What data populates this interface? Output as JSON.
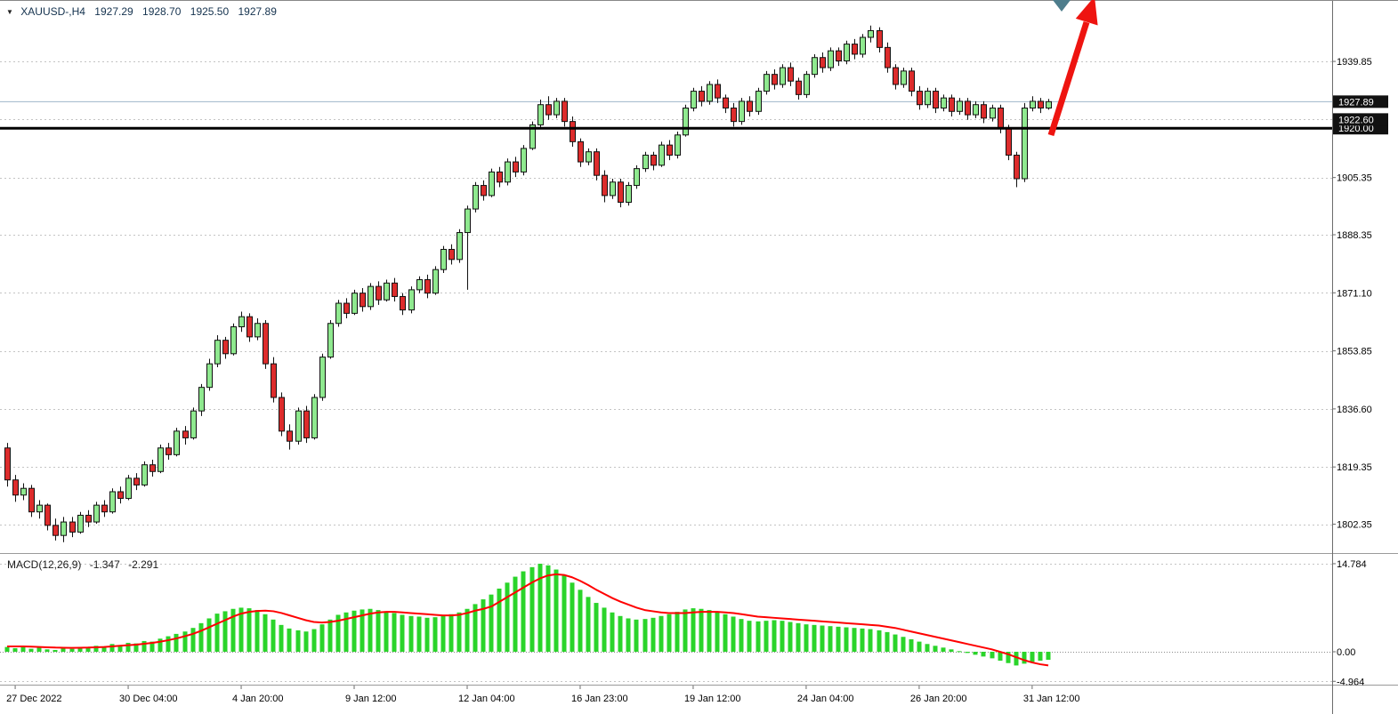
{
  "header": {
    "symbol_tf": "XAUUSD-,H4",
    "open": "1927.29",
    "high": "1928.70",
    "low": "1925.50",
    "close": "1927.89"
  },
  "colors": {
    "bull_candle": "#8fe98f",
    "bear_candle": "#dd2c2c",
    "candle_border": "#111111",
    "grid": "#c4c4c4",
    "axis_line": "#6b6b6b",
    "separator": "#9a9a9a",
    "bid_line": "#9fb6ca",
    "level_line": "#000000",
    "label_box": "#111111",
    "label_box_text": "#ffffff",
    "macd_bar": "#2ad42a",
    "macd_signal": "#ff0000",
    "arrow": "#ee1410",
    "anchor_marker": "#4e7d8c",
    "tick_text": "#000000"
  },
  "chart_data": [
    {
      "type": "candlestick",
      "title": "XAUUSD- H4",
      "price_axis_ticks": [
        {
          "label": "1939.85"
        },
        {
          "label": "1922.60",
          "boxed": true
        },
        {
          "label": "1905.35"
        },
        {
          "label": "1888.35"
        },
        {
          "label": "1871.10"
        },
        {
          "label": "1853.85"
        },
        {
          "label": "1836.60"
        },
        {
          "label": "1819.35"
        },
        {
          "label": "1802.35"
        }
      ],
      "levels": [
        {
          "price": 1927.89,
          "label": "1927.89",
          "kind": "bid-price-line",
          "width": 1
        },
        {
          "price": 1920.0,
          "label": "1920.00",
          "kind": "support-line",
          "width": 3
        }
      ],
      "price_range_hint": [
        1794.4,
        1958.1
      ],
      "time_labels": [
        {
          "text": "27 Dec 2022",
          "index": 1
        },
        {
          "text": "30 Dec 04:00",
          "index": 15
        },
        {
          "text": "4 Jan 20:00",
          "index": 29
        },
        {
          "text": "9 Jan 12:00",
          "index": 43
        },
        {
          "text": "12 Jan 04:00",
          "index": 57
        },
        {
          "text": "16 Jan 23:00",
          "index": 71
        },
        {
          "text": "19 Jan 12:00",
          "index": 85
        },
        {
          "text": "24 Jan 04:00",
          "index": 99
        },
        {
          "text": "26 Jan 20:00",
          "index": 113
        },
        {
          "text": "31 Jan 12:00",
          "index": 127
        }
      ],
      "candles_ohlc": [
        [
          1825.0,
          1826.5,
          1813.5,
          1815.5
        ],
        [
          1815.5,
          1817.0,
          1809.0,
          1811.0
        ],
        [
          1811.0,
          1814.5,
          1809.5,
          1813.0
        ],
        [
          1813.0,
          1814.0,
          1804.5,
          1806.0
        ],
        [
          1806.0,
          1809.5,
          1804.0,
          1808.0
        ],
        [
          1808.0,
          1808.5,
          1800.5,
          1802.0
        ],
        [
          1802.0,
          1804.0,
          1797.5,
          1799.0
        ],
        [
          1799.0,
          1804.5,
          1797.0,
          1803.0
        ],
        [
          1803.0,
          1804.5,
          1798.5,
          1800.0
        ],
        [
          1800.0,
          1806.0,
          1799.5,
          1805.0
        ],
        [
          1805.0,
          1806.5,
          1801.5,
          1803.0
        ],
        [
          1803.0,
          1809.0,
          1802.5,
          1808.0
        ],
        [
          1808.0,
          1809.5,
          1804.5,
          1806.0
        ],
        [
          1806.0,
          1813.0,
          1805.5,
          1812.0
        ],
        [
          1812.0,
          1813.5,
          1808.5,
          1810.0
        ],
        [
          1810.0,
          1817.0,
          1809.5,
          1816.0
        ],
        [
          1816.0,
          1817.5,
          1812.5,
          1814.0
        ],
        [
          1814.0,
          1821.0,
          1813.5,
          1820.0
        ],
        [
          1820.0,
          1821.5,
          1816.5,
          1818.0
        ],
        [
          1818.0,
          1826.0,
          1817.5,
          1825.0
        ],
        [
          1825.0,
          1826.5,
          1821.5,
          1823.0
        ],
        [
          1823.0,
          1831.0,
          1822.5,
          1830.0
        ],
        [
          1830.0,
          1831.5,
          1826.0,
          1828.0
        ],
        [
          1828.0,
          1837.0,
          1827.5,
          1836.0
        ],
        [
          1836.0,
          1844.0,
          1834.5,
          1843.0
        ],
        [
          1843.0,
          1851.5,
          1842.0,
          1850.0
        ],
        [
          1850.0,
          1858.5,
          1849.0,
          1857.0
        ],
        [
          1857.0,
          1858.0,
          1851.5,
          1853.0
        ],
        [
          1853.0,
          1862.0,
          1852.5,
          1861.0
        ],
        [
          1861.0,
          1865.5,
          1859.5,
          1864.0
        ],
        [
          1864.0,
          1865.0,
          1856.5,
          1858.0
        ],
        [
          1858.0,
          1863.5,
          1857.0,
          1862.0
        ],
        [
          1862.0,
          1863.0,
          1848.5,
          1850.0
        ],
        [
          1850.0,
          1852.0,
          1838.5,
          1840.0
        ],
        [
          1840.0,
          1841.5,
          1828.5,
          1830.0
        ],
        [
          1830.0,
          1832.0,
          1824.5,
          1827.0
        ],
        [
          1827.0,
          1837.0,
          1826.0,
          1836.0
        ],
        [
          1836.0,
          1837.5,
          1826.5,
          1828.0
        ],
        [
          1828.0,
          1841.0,
          1827.5,
          1840.0
        ],
        [
          1840.0,
          1853.0,
          1839.0,
          1852.0
        ],
        [
          1852.0,
          1863.0,
          1851.5,
          1862.0
        ],
        [
          1862.0,
          1869.0,
          1861.0,
          1868.0
        ],
        [
          1868.0,
          1869.5,
          1863.5,
          1865.0
        ],
        [
          1865.0,
          1872.0,
          1864.5,
          1871.0
        ],
        [
          1871.0,
          1872.5,
          1865.5,
          1867.0
        ],
        [
          1867.0,
          1874.0,
          1866.0,
          1873.0
        ],
        [
          1873.0,
          1874.5,
          1867.5,
          1869.0
        ],
        [
          1869.0,
          1875.0,
          1868.5,
          1874.0
        ],
        [
          1874.0,
          1875.5,
          1868.5,
          1870.0
        ],
        [
          1870.0,
          1871.0,
          1864.5,
          1866.0
        ],
        [
          1866.0,
          1873.0,
          1865.0,
          1872.0
        ],
        [
          1872.0,
          1876.0,
          1871.0,
          1875.0
        ],
        [
          1875.0,
          1876.5,
          1869.5,
          1871.0
        ],
        [
          1871.0,
          1879.0,
          1870.5,
          1878.0
        ],
        [
          1878.0,
          1885.0,
          1877.0,
          1884.0
        ],
        [
          1884.0,
          1885.5,
          1879.5,
          1881.0
        ],
        [
          1881.0,
          1890.0,
          1880.0,
          1889.0
        ],
        [
          1889.0,
          1897.0,
          1872.0,
          1896.0
        ],
        [
          1896.0,
          1904.0,
          1895.0,
          1903.0
        ],
        [
          1903.0,
          1904.5,
          1898.5,
          1900.0
        ],
        [
          1900.0,
          1908.0,
          1899.5,
          1907.0
        ],
        [
          1907.0,
          1908.5,
          1902.5,
          1904.0
        ],
        [
          1904.0,
          1911.0,
          1903.0,
          1910.0
        ],
        [
          1910.0,
          1911.5,
          1905.5,
          1907.0
        ],
        [
          1907.0,
          1915.0,
          1906.0,
          1914.0
        ],
        [
          1914.0,
          1922.0,
          1913.5,
          1921.0
        ],
        [
          1921.0,
          1928.5,
          1920.0,
          1927.0
        ],
        [
          1927.0,
          1929.5,
          1922.5,
          1924.0
        ],
        [
          1924.0,
          1929.0,
          1923.0,
          1928.0
        ],
        [
          1928.0,
          1929.0,
          1920.5,
          1922.0
        ],
        [
          1922.0,
          1923.5,
          1914.5,
          1916.0
        ],
        [
          1916.0,
          1917.0,
          1908.5,
          1910.0
        ],
        [
          1910.0,
          1914.0,
          1909.0,
          1913.0
        ],
        [
          1913.0,
          1914.0,
          1904.5,
          1906.0
        ],
        [
          1906.0,
          1907.5,
          1898.0,
          1900.0
        ],
        [
          1900.0,
          1905.0,
          1899.0,
          1904.0
        ],
        [
          1904.0,
          1905.0,
          1896.5,
          1898.0
        ],
        [
          1898.0,
          1904.0,
          1897.0,
          1903.0
        ],
        [
          1903.0,
          1909.0,
          1902.0,
          1908.0
        ],
        [
          1908.0,
          1913.0,
          1907.0,
          1912.0
        ],
        [
          1912.0,
          1913.0,
          1907.5,
          1909.0
        ],
        [
          1909.0,
          1916.0,
          1908.5,
          1915.0
        ],
        [
          1915.0,
          1916.5,
          1910.5,
          1912.0
        ],
        [
          1912.0,
          1919.0,
          1911.0,
          1918.0
        ],
        [
          1918.0,
          1927.0,
          1917.5,
          1926.0
        ],
        [
          1926.0,
          1932.0,
          1925.0,
          1931.0
        ],
        [
          1931.0,
          1932.5,
          1926.5,
          1928.0
        ],
        [
          1928.0,
          1934.0,
          1927.0,
          1933.0
        ],
        [
          1933.0,
          1934.5,
          1927.5,
          1929.0
        ],
        [
          1929.0,
          1930.0,
          1924.5,
          1926.0
        ],
        [
          1926.0,
          1927.5,
          1920.5,
          1922.0
        ],
        [
          1922.0,
          1929.0,
          1921.0,
          1928.0
        ],
        [
          1928.0,
          1929.5,
          1923.5,
          1925.0
        ],
        [
          1925.0,
          1932.0,
          1924.0,
          1931.0
        ],
        [
          1931.0,
          1937.0,
          1930.0,
          1936.0
        ],
        [
          1936.0,
          1937.5,
          1931.5,
          1933.0
        ],
        [
          1933.0,
          1939.0,
          1932.0,
          1938.0
        ],
        [
          1938.0,
          1939.5,
          1932.5,
          1934.0
        ],
        [
          1934.0,
          1935.0,
          1928.5,
          1930.0
        ],
        [
          1930.0,
          1937.0,
          1929.0,
          1936.0
        ],
        [
          1936.0,
          1942.0,
          1935.0,
          1941.0
        ],
        [
          1941.0,
          1942.5,
          1936.5,
          1938.0
        ],
        [
          1938.0,
          1944.0,
          1937.0,
          1943.0
        ],
        [
          1943.0,
          1944.0,
          1938.5,
          1940.0
        ],
        [
          1940.0,
          1946.0,
          1939.0,
          1945.0
        ],
        [
          1945.0,
          1946.5,
          1940.5,
          1942.0
        ],
        [
          1942.0,
          1948.0,
          1941.0,
          1947.0
        ],
        [
          1947.0,
          1950.5,
          1945.5,
          1949.0
        ],
        [
          1949.0,
          1950.0,
          1942.5,
          1944.0
        ],
        [
          1944.0,
          1945.5,
          1936.5,
          1938.0
        ],
        [
          1938.0,
          1939.0,
          1931.5,
          1933.0
        ],
        [
          1933.0,
          1938.0,
          1932.0,
          1937.0
        ],
        [
          1937.0,
          1938.0,
          1929.5,
          1931.0
        ],
        [
          1931.0,
          1932.5,
          1925.5,
          1927.0
        ],
        [
          1927.0,
          1932.0,
          1926.0,
          1931.0
        ],
        [
          1931.0,
          1932.0,
          1924.5,
          1926.0
        ],
        [
          1926.0,
          1930.0,
          1925.0,
          1929.0
        ],
        [
          1929.0,
          1930.0,
          1923.5,
          1925.0
        ],
        [
          1925.0,
          1929.0,
          1924.0,
          1928.0
        ],
        [
          1928.0,
          1929.0,
          1922.5,
          1924.0
        ],
        [
          1924.0,
          1928.0,
          1923.0,
          1927.0
        ],
        [
          1927.0,
          1928.0,
          1921.5,
          1923.0
        ],
        [
          1923.0,
          1927.0,
          1922.0,
          1926.0
        ],
        [
          1926.0,
          1927.0,
          1918.5,
          1920.0
        ],
        [
          1920.0,
          1921.0,
          1910.5,
          1912.0
        ],
        [
          1912.0,
          1913.0,
          1902.5,
          1905.0
        ],
        [
          1905.0,
          1927.5,
          1904.0,
          1926.0
        ],
        [
          1926.0,
          1929.5,
          1925.0,
          1928.0
        ],
        [
          1928.0,
          1929.0,
          1924.5,
          1926.0
        ],
        [
          1926.0,
          1928.7,
          1925.5,
          1927.89
        ]
      ]
    },
    {
      "type": "bar+line",
      "name": "MACD",
      "label": "MACD(12,26,9)",
      "value_text": "-1.347",
      "signal_text": "-2.291",
      "ticks": [
        "14.784",
        "0.00",
        "-4.964"
      ],
      "range_hint": [
        -5.5,
        16.6
      ],
      "histogram": [
        0.8,
        0.6,
        0.9,
        0.5,
        0.7,
        0.4,
        0.3,
        0.6,
        0.5,
        0.8,
        0.7,
        1.0,
        0.9,
        1.3,
        1.1,
        1.5,
        1.4,
        1.8,
        1.7,
        2.2,
        2.6,
        3.0,
        3.4,
        4.0,
        4.8,
        5.6,
        6.4,
        6.8,
        7.2,
        7.4,
        7.3,
        7.0,
        6.3,
        5.4,
        4.5,
        3.9,
        3.6,
        3.4,
        3.8,
        4.6,
        5.4,
        6.2,
        6.6,
        6.9,
        7.1,
        7.2,
        7.0,
        6.8,
        6.5,
        6.2,
        6.0,
        5.9,
        5.7,
        5.8,
        6.1,
        6.3,
        6.6,
        7.2,
        8.0,
        8.8,
        9.6,
        10.6,
        11.6,
        12.6,
        13.5,
        14.2,
        14.78,
        14.5,
        13.8,
        12.8,
        11.6,
        10.4,
        9.2,
        8.2,
        7.4,
        6.6,
        6.0,
        5.6,
        5.4,
        5.5,
        5.7,
        6.0,
        6.3,
        6.7,
        7.1,
        7.3,
        7.2,
        7.0,
        6.7,
        6.3,
        5.9,
        5.5,
        5.2,
        5.1,
        5.2,
        5.3,
        5.2,
        5.0,
        4.8,
        4.6,
        4.5,
        4.4,
        4.3,
        4.2,
        4.1,
        4.0,
        3.9,
        3.8,
        3.6,
        3.3,
        2.9,
        2.5,
        2.1,
        1.7,
        1.3,
        1.0,
        0.7,
        0.4,
        0.1,
        -0.2,
        -0.5,
        -0.8,
        -1.1,
        -1.5,
        -1.9,
        -2.3,
        -2.0,
        -1.7,
        -1.5,
        -1.347
      ],
      "signal": [
        0.9,
        0.9,
        0.9,
        0.85,
        0.8,
        0.75,
        0.7,
        0.68,
        0.65,
        0.68,
        0.7,
        0.75,
        0.8,
        0.9,
        1.0,
        1.1,
        1.2,
        1.35,
        1.5,
        1.7,
        1.95,
        2.25,
        2.6,
        3.0,
        3.5,
        4.1,
        4.7,
        5.3,
        5.9,
        6.4,
        6.7,
        6.85,
        6.9,
        6.8,
        6.5,
        6.1,
        5.7,
        5.3,
        5.0,
        4.9,
        5.0,
        5.2,
        5.5,
        5.8,
        6.1,
        6.4,
        6.6,
        6.7,
        6.7,
        6.6,
        6.5,
        6.4,
        6.3,
        6.2,
        6.1,
        6.1,
        6.2,
        6.5,
        6.9,
        7.2,
        7.6,
        8.4,
        9.2,
        10.0,
        10.8,
        11.6,
        12.3,
        12.8,
        13.0,
        12.9,
        12.5,
        11.9,
        11.2,
        10.4,
        9.7,
        9.0,
        8.4,
        7.9,
        7.4,
        7.0,
        6.8,
        6.6,
        6.5,
        6.5,
        6.5,
        6.6,
        6.7,
        6.7,
        6.7,
        6.6,
        6.5,
        6.3,
        6.1,
        5.9,
        5.8,
        5.7,
        5.6,
        5.5,
        5.4,
        5.3,
        5.2,
        5.1,
        5.0,
        4.9,
        4.8,
        4.7,
        4.6,
        4.5,
        4.4,
        4.2,
        4.0,
        3.7,
        3.4,
        3.1,
        2.8,
        2.5,
        2.2,
        1.9,
        1.6,
        1.3,
        1.0,
        0.7,
        0.4,
        0.0,
        -0.4,
        -0.9,
        -1.4,
        -1.8,
        -2.1,
        -2.291
      ]
    }
  ],
  "objects": {
    "trend_arrow": {
      "shaft": [
        [
          1181,
          152
        ],
        [
          1221,
          25
        ]
      ],
      "head": [
        [
          1230,
          -4
        ],
        [
          1233.6,
          28.5
        ],
        [
          1208.8,
          20.9
        ]
      ],
      "shaft_width": 7
    },
    "anchor_marker": {
      "points": [
        [
          1183,
          0
        ],
        [
          1203,
          0
        ],
        [
          1193,
          13
        ]
      ]
    }
  }
}
